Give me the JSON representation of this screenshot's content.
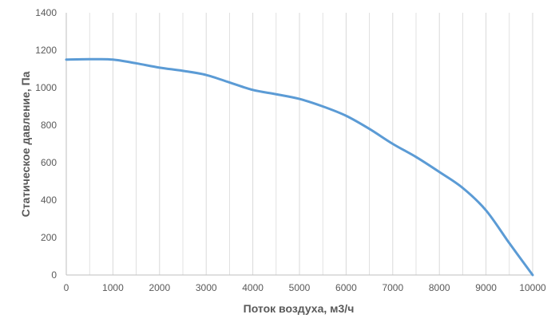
{
  "chart_data": {
    "type": "line",
    "title": "",
    "xlabel": "Поток воздуха, м3/ч",
    "ylabel": "Статическое давление, Па",
    "xlim": [
      0,
      10000
    ],
    "ylim": [
      0,
      1400
    ],
    "x_ticks": [
      0,
      1000,
      2000,
      3000,
      4000,
      5000,
      6000,
      7000,
      8000,
      9000,
      10000
    ],
    "y_ticks": [
      0,
      200,
      400,
      600,
      800,
      1000,
      1200,
      1400
    ],
    "x_tick_labels": [
      "0",
      "1000",
      "2000",
      "3000",
      "4000",
      "5000",
      "6000",
      "7000",
      "8000",
      "9000",
      "10000"
    ],
    "y_tick_labels": [
      "0",
      "200",
      "400",
      "600",
      "800",
      "1000",
      "1200",
      "1400"
    ],
    "grid": "vertical-major-and-minor",
    "legend": "none",
    "line_color": "#5B9BD5",
    "grid_color": "#D9D9D9",
    "series": [
      {
        "x": [
          0,
          500,
          1000,
          1500,
          2000,
          2500,
          3000,
          3500,
          4000,
          4500,
          5000,
          5500,
          6000,
          6500,
          7000,
          7500,
          8000,
          8500,
          9000,
          9500,
          10000
        ],
        "y": [
          1150,
          1152,
          1150,
          1130,
          1107,
          1090,
          1068,
          1028,
          988,
          965,
          940,
          900,
          850,
          780,
          700,
          630,
          550,
          465,
          345,
          170,
          0
        ]
      }
    ]
  }
}
